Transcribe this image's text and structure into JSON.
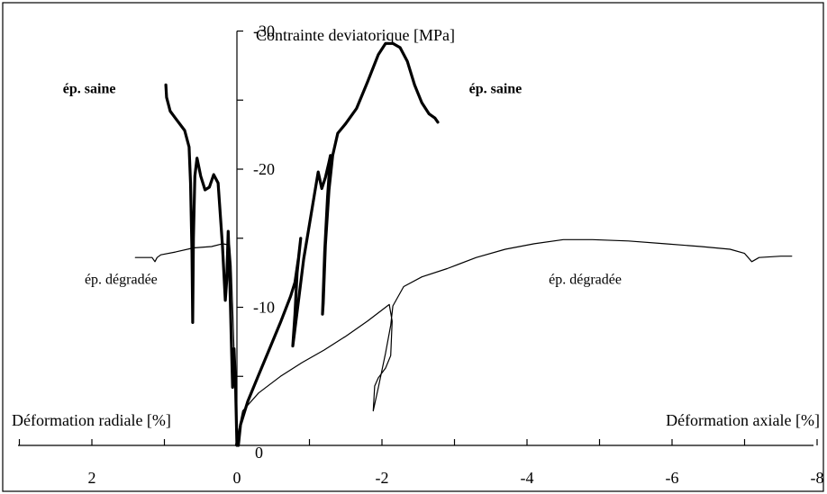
{
  "chart_data": {
    "type": "line",
    "title": "Contrainte deviatorique [MPa]",
    "xlabel_left": "Déformation radiale [%]",
    "xlabel_right": "Déformation axiale [%]",
    "x_ticks": [
      {
        "value": 2,
        "label": "2"
      },
      {
        "value": 0,
        "label": "0"
      },
      {
        "value": -2,
        "label": "-2"
      },
      {
        "value": -4,
        "label": "-4"
      },
      {
        "value": -6,
        "label": "-6"
      },
      {
        "value": -8,
        "label": "-8"
      }
    ],
    "y_ticks": [
      {
        "value": -10,
        "label": "-10"
      },
      {
        "value": -20,
        "label": "-20"
      },
      {
        "value": -30,
        "label": "-30"
      }
    ],
    "y_zero_label": "0",
    "xlim": [
      3,
      -8
    ],
    "ylim": [
      0,
      -30
    ],
    "grid": false,
    "annotations": [
      {
        "text": "ép. saine",
        "bold": true,
        "x": 2.4,
        "y": -25.5
      },
      {
        "text": "ép. saine",
        "bold": true,
        "x": -3.2,
        "y": -25.5
      },
      {
        "text": "ép. dégradée",
        "bold": false,
        "x": 2.1,
        "y": -11.7
      },
      {
        "text": "ép. dégradée",
        "bold": false,
        "x": -4.3,
        "y": -11.7
      }
    ],
    "series": [
      {
        "color": "#000000",
        "width": 3.2,
        "points": [
          [
            -0.02,
            0
          ],
          [
            -0.05,
            -1.5
          ],
          [
            -0.15,
            -3.2
          ],
          [
            -0.3,
            -5.1
          ],
          [
            -0.45,
            -7.0
          ],
          [
            -0.6,
            -8.9
          ],
          [
            -0.74,
            -10.8
          ],
          [
            -0.8,
            -11.8
          ],
          [
            -0.85,
            -13.6
          ],
          [
            -0.88,
            -15.0
          ],
          [
            -0.83,
            -12.5
          ],
          [
            -0.8,
            -9.5
          ],
          [
            -0.77,
            -7.2
          ],
          [
            -0.79,
            -8.0
          ],
          [
            -0.85,
            -10.5
          ],
          [
            -0.92,
            -13.5
          ],
          [
            -1.0,
            -16.0
          ],
          [
            -1.07,
            -18.2
          ],
          [
            -1.12,
            -19.8
          ],
          [
            -1.17,
            -18.6
          ],
          [
            -1.22,
            -19.4
          ],
          [
            -1.27,
            -20.5
          ],
          [
            -1.29,
            -21.0
          ],
          [
            -1.25,
            -18.0
          ],
          [
            -1.21,
            -14.0
          ],
          [
            -1.18,
            -9.5
          ],
          [
            -1.19,
            -10.3
          ],
          [
            -1.22,
            -14.5
          ],
          [
            -1.27,
            -18.5
          ],
          [
            -1.32,
            -21.0
          ],
          [
            -1.39,
            -22.6
          ],
          [
            -1.5,
            -23.3
          ],
          [
            -1.65,
            -24.4
          ],
          [
            -1.8,
            -26.3
          ],
          [
            -1.95,
            -28.3
          ],
          [
            -2.05,
            -29.1
          ],
          [
            -2.15,
            -29.1
          ],
          [
            -2.25,
            -28.8
          ],
          [
            -2.35,
            -27.8
          ],
          [
            -2.45,
            -26.1
          ],
          [
            -2.55,
            -24.8
          ],
          [
            -2.65,
            -24.0
          ],
          [
            -2.73,
            -23.7
          ],
          [
            -2.77,
            -23.4
          ]
        ]
      },
      {
        "color": "#000000",
        "width": 3.2,
        "points": [
          [
            0,
            0
          ],
          [
            0.02,
            -4.5
          ],
          [
            0.04,
            -7.0
          ],
          [
            0.06,
            -4.2
          ],
          [
            0.08,
            -8.0
          ],
          [
            0.1,
            -12.5
          ],
          [
            0.12,
            -15.5
          ],
          [
            0.14,
            -12.0
          ],
          [
            0.16,
            -10.5
          ],
          [
            0.2,
            -14.5
          ],
          [
            0.26,
            -19.0
          ],
          [
            0.32,
            -19.6
          ],
          [
            0.38,
            -18.7
          ],
          [
            0.44,
            -18.5
          ],
          [
            0.5,
            -19.5
          ],
          [
            0.55,
            -20.8
          ],
          [
            0.58,
            -19.5
          ],
          [
            0.6,
            -15.0
          ],
          [
            0.61,
            -8.9
          ],
          [
            0.62,
            -14.0
          ],
          [
            0.64,
            -19.0
          ],
          [
            0.66,
            -21.6
          ],
          [
            0.72,
            -22.8
          ],
          [
            0.85,
            -23.7
          ],
          [
            0.92,
            -24.2
          ],
          [
            0.97,
            -25.2
          ],
          [
            0.98,
            -26.1
          ]
        ]
      },
      {
        "color": "#000000",
        "width": 1.2,
        "points": [
          [
            0.02,
            0
          ],
          [
            -0.08,
            -2.5
          ],
          [
            -0.3,
            -3.8
          ],
          [
            -0.6,
            -5.0
          ],
          [
            -0.9,
            -6.0
          ],
          [
            -1.2,
            -6.9
          ],
          [
            -1.5,
            -7.9
          ],
          [
            -1.8,
            -9.0
          ],
          [
            -2.1,
            -10.2
          ],
          [
            -2.14,
            -9.0
          ],
          [
            -2.12,
            -6.5
          ],
          [
            -2.05,
            -5.6
          ],
          [
            -1.95,
            -4.9
          ],
          [
            -1.9,
            -4.3
          ],
          [
            -1.88,
            -2.5
          ],
          [
            -1.95,
            -4.2
          ],
          [
            -2.05,
            -6.7
          ],
          [
            -2.12,
            -8.7
          ],
          [
            -2.15,
            -10.1
          ],
          [
            -2.3,
            -11.5
          ],
          [
            -2.55,
            -12.2
          ],
          [
            -2.9,
            -12.8
          ],
          [
            -3.3,
            -13.6
          ],
          [
            -3.7,
            -14.2
          ],
          [
            -4.1,
            -14.6
          ],
          [
            -4.5,
            -14.9
          ],
          [
            -4.9,
            -14.9
          ],
          [
            -5.4,
            -14.8
          ],
          [
            -5.9,
            -14.6
          ],
          [
            -6.4,
            -14.4
          ],
          [
            -6.8,
            -14.2
          ],
          [
            -7.0,
            -13.9
          ],
          [
            -7.1,
            -13.3
          ],
          [
            -7.2,
            -13.6
          ],
          [
            -7.5,
            -13.7
          ],
          [
            -7.65,
            -13.7
          ]
        ]
      },
      {
        "color": "#000000",
        "width": 1.2,
        "points": [
          [
            0,
            0
          ],
          [
            0.03,
            -5.0
          ],
          [
            0.05,
            -8.5
          ],
          [
            0.08,
            -13.0
          ],
          [
            0.1,
            -14.5
          ],
          [
            0.2,
            -14.6
          ],
          [
            0.35,
            -14.4
          ],
          [
            0.6,
            -14.3
          ],
          [
            0.85,
            -14.0
          ],
          [
            1.05,
            -13.8
          ],
          [
            1.1,
            -13.6
          ],
          [
            1.13,
            -13.3
          ],
          [
            1.17,
            -13.6
          ],
          [
            1.3,
            -13.6
          ],
          [
            1.4,
            -13.6
          ]
        ]
      }
    ]
  }
}
